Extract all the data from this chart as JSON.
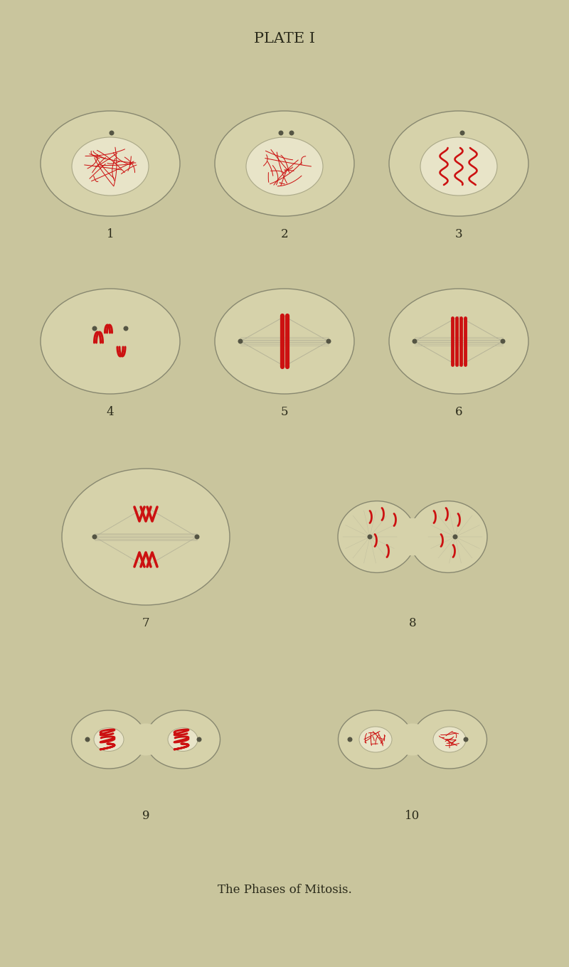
{
  "bg_color": "#c9c59d",
  "cell_bg": "#d6d2aa",
  "nucleus_bg": "#e8e4c8",
  "cell_edge": "#888870",
  "nucleus_edge": "#aaa888",
  "red_color": "#cc1111",
  "spindle_color": "#b0ae95",
  "dot_color": "#555544",
  "title": "PLATE I",
  "subtitle": "The Phases of Mitosis.",
  "title_fontsize": 15,
  "subtitle_fontsize": 12,
  "label_fontsize": 12
}
